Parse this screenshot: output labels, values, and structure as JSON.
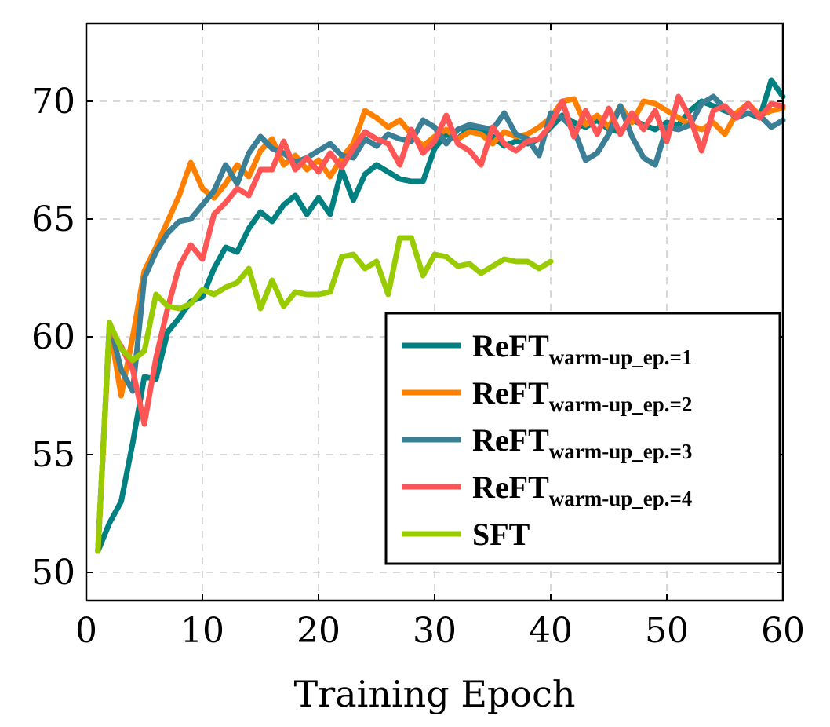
{
  "chart_data": {
    "type": "line",
    "xlabel": "Training Epoch",
    "ylabel": "",
    "xlim": [
      0,
      60
    ],
    "ylim": [
      48.8,
      73.3
    ],
    "xticks": [
      0,
      10,
      20,
      30,
      40,
      50,
      60
    ],
    "yticks": [
      50,
      55,
      60,
      65,
      70
    ],
    "grid": true,
    "legend_position": "bottom-right",
    "series": [
      {
        "name": "ReFT",
        "name_sub": "warm-up_ep.=1",
        "color": "#008080",
        "x": [
          1,
          2,
          3,
          4,
          5,
          6,
          7,
          8,
          9,
          10,
          11,
          12,
          13,
          14,
          15,
          16,
          17,
          18,
          19,
          20,
          21,
          22,
          23,
          24,
          25,
          26,
          27,
          28,
          29,
          30,
          31,
          32,
          33,
          34,
          35,
          36,
          37,
          38,
          39,
          40,
          41,
          42,
          43,
          44,
          45,
          46,
          47,
          48,
          49,
          50,
          51,
          52,
          53,
          54,
          55,
          56,
          57,
          58,
          59,
          60
        ],
        "y": [
          50.9,
          52.1,
          53.0,
          55.5,
          58.3,
          58.2,
          60.2,
          60.8,
          61.5,
          61.7,
          62.9,
          63.8,
          63.6,
          64.6,
          65.3,
          64.9,
          65.6,
          66.0,
          65.2,
          65.9,
          65.2,
          67.1,
          65.8,
          66.9,
          67.3,
          67.0,
          66.7,
          66.6,
          66.6,
          68.0,
          68.6,
          68.4,
          68.9,
          68.8,
          68.5,
          68.1,
          68.3,
          68.2,
          68.4,
          68.9,
          69.4,
          69.1,
          68.9,
          69.2,
          68.8,
          68.7,
          69.2,
          69.0,
          68.8,
          69.1,
          69.0,
          69.6,
          70.0,
          69.8,
          69.6,
          69.4,
          69.5,
          69.3,
          70.9,
          70.2
        ]
      },
      {
        "name": "ReFT",
        "name_sub": "warm-up_ep.=2",
        "color": "#ff8000",
        "x": [
          1,
          2,
          3,
          4,
          5,
          6,
          7,
          8,
          9,
          10,
          11,
          12,
          13,
          14,
          15,
          16,
          17,
          18,
          19,
          20,
          21,
          22,
          23,
          24,
          25,
          26,
          27,
          28,
          29,
          30,
          31,
          32,
          33,
          34,
          35,
          36,
          37,
          38,
          39,
          40,
          41,
          42,
          43,
          44,
          45,
          46,
          47,
          48,
          49,
          50,
          51,
          52,
          53,
          54,
          55,
          56,
          57,
          58,
          59,
          60
        ],
        "y": [
          50.9,
          60.5,
          57.5,
          60.0,
          62.8,
          63.8,
          64.9,
          66.0,
          67.4,
          66.3,
          65.9,
          66.5,
          67.3,
          66.8,
          67.9,
          68.4,
          67.3,
          67.7,
          67.1,
          67.5,
          66.8,
          67.6,
          68.2,
          69.6,
          69.3,
          68.9,
          69.2,
          68.6,
          68.1,
          68.5,
          68.8,
          68.4,
          68.7,
          68.6,
          68.2,
          68.7,
          68.5,
          68.6,
          68.9,
          69.3,
          70.0,
          70.1,
          69.0,
          69.4,
          68.9,
          69.8,
          69.1,
          70.0,
          69.9,
          69.6,
          69.3,
          69.0,
          68.8,
          69.1,
          68.6,
          69.5,
          69.9,
          69.4,
          69.6,
          69.7
        ]
      },
      {
        "name": "ReFT",
        "name_sub": "warm-up_ep.=3",
        "color": "#3a7f96",
        "x": [
          1,
          2,
          3,
          4,
          5,
          6,
          7,
          8,
          9,
          10,
          11,
          12,
          13,
          14,
          15,
          16,
          17,
          18,
          19,
          20,
          21,
          22,
          23,
          24,
          25,
          26,
          27,
          28,
          29,
          30,
          31,
          32,
          33,
          34,
          35,
          36,
          37,
          38,
          39,
          40,
          41,
          42,
          43,
          44,
          45,
          46,
          47,
          48,
          49,
          50,
          51,
          52,
          53,
          54,
          55,
          56,
          57,
          58,
          59,
          60
        ],
        "y": [
          50.9,
          60.6,
          58.6,
          57.7,
          62.5,
          63.6,
          64.4,
          64.9,
          65.0,
          65.6,
          66.2,
          67.3,
          66.5,
          67.8,
          68.5,
          68.0,
          67.8,
          67.4,
          67.6,
          67.9,
          68.2,
          67.7,
          67.6,
          68.4,
          68.1,
          68.6,
          68.4,
          68.3,
          69.2,
          68.9,
          68.2,
          68.8,
          69.0,
          68.9,
          68.8,
          69.5,
          68.6,
          68.4,
          67.7,
          69.5,
          69.3,
          68.8,
          67.5,
          67.8,
          68.6,
          69.8,
          68.5,
          67.6,
          67.3,
          68.9,
          68.8,
          69.0,
          69.9,
          70.2,
          69.7,
          69.3,
          69.5,
          69.4,
          68.9,
          69.2
        ]
      },
      {
        "name": "ReFT",
        "name_sub": "warm-up_ep.=4",
        "color": "#ff5555",
        "x": [
          1,
          2,
          3,
          4,
          5,
          6,
          7,
          8,
          9,
          10,
          11,
          12,
          13,
          14,
          15,
          16,
          17,
          18,
          19,
          20,
          21,
          22,
          23,
          24,
          25,
          26,
          27,
          28,
          29,
          30,
          31,
          32,
          33,
          34,
          35,
          36,
          37,
          38,
          39,
          40,
          41,
          42,
          43,
          44,
          45,
          46,
          47,
          48,
          49,
          50,
          51,
          52,
          53,
          54,
          55,
          56,
          57,
          58,
          59,
          60
        ],
        "y": [
          50.9,
          60.4,
          59.6,
          58.6,
          56.3,
          59.1,
          61.2,
          63.0,
          63.9,
          63.3,
          65.2,
          65.7,
          66.3,
          66.0,
          67.1,
          67.1,
          68.3,
          67.1,
          67.6,
          67.0,
          67.8,
          67.2,
          68.0,
          68.7,
          68.4,
          68.2,
          67.3,
          68.8,
          67.8,
          68.3,
          69.4,
          68.2,
          67.9,
          67.3,
          68.9,
          68.2,
          67.9,
          68.3,
          68.4,
          69.0,
          70.0,
          68.5,
          69.6,
          68.6,
          69.7,
          68.6,
          69.5,
          68.8,
          69.6,
          68.3,
          70.2,
          69.3,
          67.9,
          69.6,
          69.8,
          69.3,
          69.9,
          69.3,
          69.9,
          69.8
        ]
      },
      {
        "name": "SFT",
        "name_sub": "",
        "color": "#99cc00",
        "x": [
          1,
          2,
          3,
          4,
          5,
          6,
          7,
          8,
          9,
          10,
          11,
          12,
          13,
          14,
          15,
          16,
          17,
          18,
          19,
          20,
          21,
          22,
          23,
          24,
          25,
          26,
          27,
          28,
          29,
          30,
          31,
          32,
          33,
          34,
          35,
          36,
          37,
          38,
          39,
          40
        ],
        "y": [
          50.9,
          60.6,
          59.5,
          59.0,
          59.4,
          61.8,
          61.3,
          61.2,
          61.4,
          62.0,
          61.8,
          62.1,
          62.3,
          62.9,
          61.2,
          62.4,
          61.3,
          61.9,
          61.8,
          61.8,
          61.9,
          63.4,
          63.5,
          62.9,
          63.2,
          61.8,
          64.2,
          64.2,
          62.6,
          63.5,
          63.4,
          63.0,
          63.1,
          62.7,
          63.0,
          63.3,
          63.2,
          63.2,
          62.9,
          63.2
        ]
      }
    ]
  }
}
